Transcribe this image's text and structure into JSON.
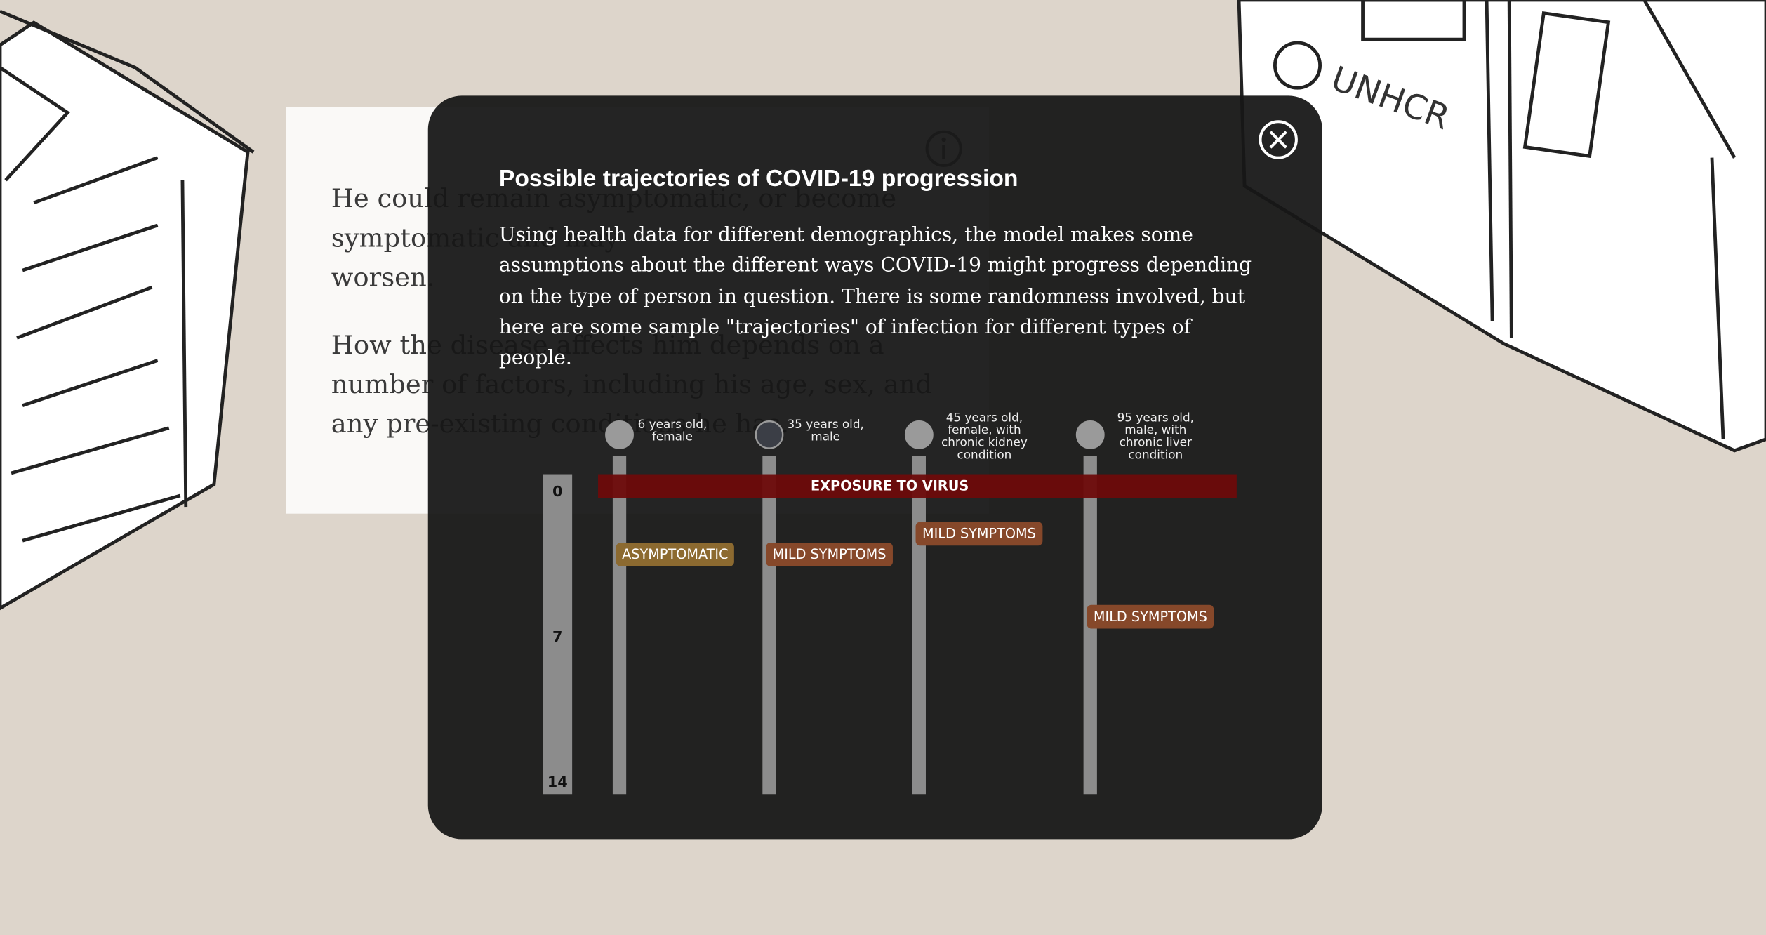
{
  "background": {
    "sign": "UNHCR",
    "paragraphs": [
      [
        "He could remain asymptomatic, or become",
        "symptomatic and may",
        "worsen."
      ],
      [
        "How the disease affects him depends on a",
        "number of factors, including his age, sex, and",
        "any pre-existing conditions he has."
      ]
    ]
  },
  "modal": {
    "title": "Possible trajectories of COVID-19 progression",
    "description": "Using health data for different demographics, the model makes some assumptions about the different ways COVID-19 might progress depending on the type of person in question. There is some randomness involved, but here are some sample \"trajectories\" of infection for different types of people.",
    "timeline": {
      "day_ticks": [
        0,
        7,
        14
      ],
      "day_range": [
        0,
        14
      ],
      "exposure_label": "EXPOSURE TO VIRUS",
      "people": [
        {
          "label": [
            "6 years old,",
            "female"
          ],
          "color": "#9a9a9a",
          "status": "ASYMPTOMATIC",
          "status_color": "#8c6a30",
          "day": 3
        },
        {
          "label": [
            "35 years old,",
            "male"
          ],
          "color": "#3b3e46",
          "status": "MILD SYMPTOMS",
          "status_color": "#86482a",
          "day": 3
        },
        {
          "label": [
            "45 years old,",
            "female, with",
            "chronic kidney",
            "condition"
          ],
          "color": "#9a9a9a",
          "status": "MILD SYMPTOMS",
          "status_color": "#86482a",
          "day": 2
        },
        {
          "label": [
            "95 years old,",
            "male, with",
            "chronic liver",
            "condition"
          ],
          "color": "#9a9a9a",
          "status": "MILD SYMPTOMS",
          "status_color": "#86482a",
          "day": 6
        }
      ]
    }
  }
}
